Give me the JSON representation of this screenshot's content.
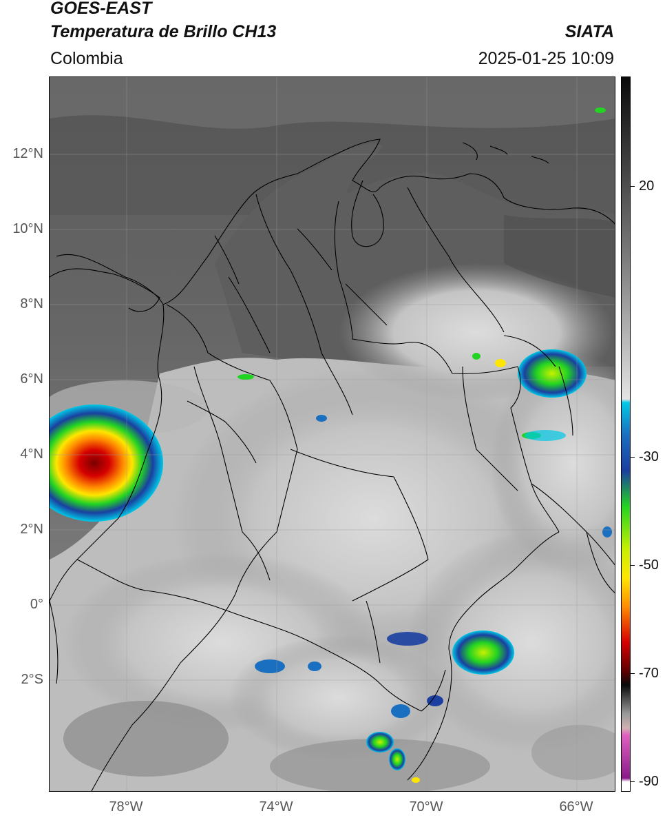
{
  "header": {
    "satellite": "GOES-EAST",
    "product": "Temperatura de Brillo CH13",
    "region": "Colombia",
    "source": "SIATA",
    "datetime": "2025-01-25 10:09"
  },
  "map": {
    "lat_labels": [
      "12°N",
      "10°N",
      "8°N",
      "6°N",
      "4°N",
      "2°N",
      "0°",
      "2°S"
    ],
    "lon_labels": [
      "78°W",
      "74°W",
      "70°W",
      "66°W"
    ]
  },
  "colorbar": {
    "tick_labels": [
      "20",
      "-30",
      "-50",
      "-70",
      "-90"
    ],
    "colors": {
      "warm": "#2b2b2b",
      "neutral": "#c8c8c8",
      "cyan": "#00c8e6",
      "blue": "#1a3fa0",
      "green": "#22d422",
      "yellow": "#ffe600",
      "orange": "#ff8c00",
      "red": "#d60000",
      "dark": "#1a1a1a",
      "magenta": "#c040c0"
    }
  }
}
